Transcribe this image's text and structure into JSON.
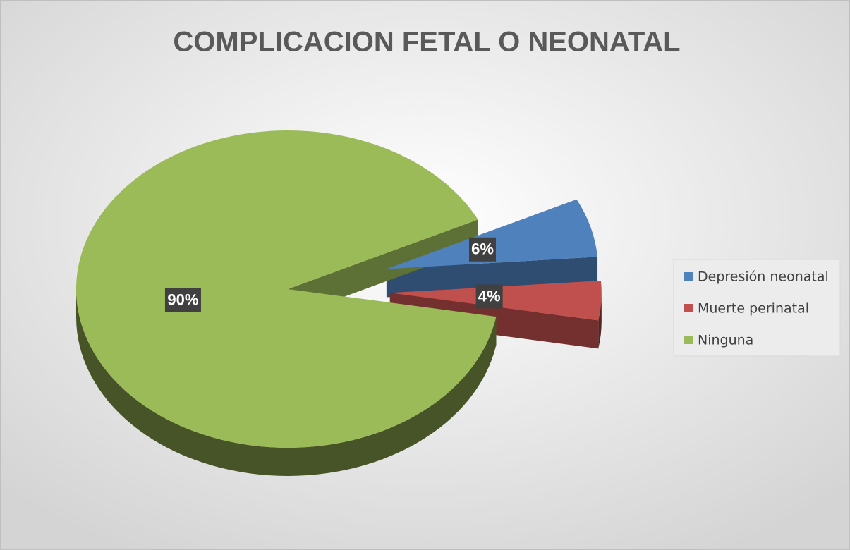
{
  "chart_data": {
    "type": "pie",
    "title": "COMPLICACION FETAL O NEONATAL",
    "categories": [
      "Depresión neonatal",
      "Muerte perinatal",
      "Ninguna"
    ],
    "values": [
      6,
      4,
      90
    ],
    "value_labels": [
      "6%",
      "4%",
      "90%"
    ],
    "colors": [
      "#4f81bd",
      "#c0504d",
      "#9bbb59"
    ],
    "legend": "right"
  }
}
